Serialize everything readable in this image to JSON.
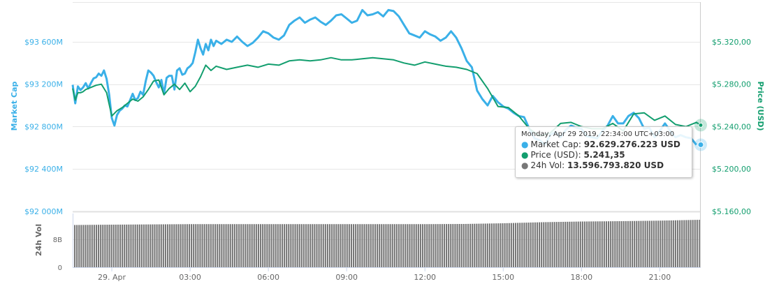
{
  "chart_data": {
    "type": "line",
    "title": "",
    "panes": [
      {
        "name": "main",
        "left_axis": {
          "label": "Market Cap",
          "ticks": [
            "$92 000M",
            "$92 400M",
            "$92 800M",
            "$93 200M",
            "$93 600M"
          ],
          "tick_values": [
            92000,
            92400,
            92800,
            93200,
            93600
          ],
          "range": [
            92000,
            93975
          ],
          "unit": "million USD",
          "color": "#3ab0e8"
        },
        "right_axis": {
          "label": "Price (USD)",
          "ticks": [
            "$5.160,00",
            "$5.200,00",
            "$5.240,00",
            "$5.280,00",
            "$5.320,00"
          ],
          "tick_values": [
            5160,
            5200,
            5240,
            5280,
            5320
          ],
          "range": [
            5160,
            5357.5
          ],
          "color": "#129e6e"
        }
      },
      {
        "name": "volume",
        "left_axis": {
          "label": "24h Vol",
          "ticks": [
            "0",
            "8B"
          ],
          "tick_values": [
            0,
            8
          ],
          "range": [
            0,
            16
          ],
          "unit": "billion USD",
          "color": "#666666"
        }
      }
    ],
    "xaxis": {
      "ticks": [
        "29. Apr",
        "03:00",
        "06:00",
        "09:00",
        "12:00",
        "15:00",
        "18:00",
        "21:00"
      ],
      "range_hours": [
        -1.5,
        22.57
      ]
    },
    "series": [
      {
        "name": "Market Cap",
        "axis": "left",
        "color": "#3ab0e8",
        "x_hours": [
          -1.5,
          -1.4,
          -1.3,
          -1.2,
          -1.1,
          -1.0,
          -0.9,
          -0.8,
          -0.7,
          -0.6,
          -0.5,
          -0.4,
          -0.3,
          -0.2,
          -0.1,
          0.0,
          0.1,
          0.2,
          0.3,
          0.4,
          0.5,
          0.6,
          0.7,
          0.8,
          0.9,
          1.0,
          1.1,
          1.2,
          1.3,
          1.4,
          1.5,
          1.6,
          1.7,
          1.8,
          1.9,
          2.0,
          2.1,
          2.2,
          2.3,
          2.4,
          2.5,
          2.6,
          2.7,
          2.8,
          2.9,
          3.0,
          3.1,
          3.2,
          3.3,
          3.4,
          3.5,
          3.6,
          3.7,
          3.8,
          3.9,
          4.0,
          4.2,
          4.4,
          4.6,
          4.8,
          5.0,
          5.2,
          5.4,
          5.6,
          5.8,
          6.0,
          6.2,
          6.4,
          6.6,
          6.8,
          7.0,
          7.2,
          7.4,
          7.6,
          7.8,
          8.0,
          8.2,
          8.4,
          8.6,
          8.8,
          9.0,
          9.2,
          9.4,
          9.6,
          9.8,
          10.0,
          10.2,
          10.4,
          10.6,
          10.8,
          11.0,
          11.2,
          11.4,
          11.6,
          11.8,
          12.0,
          12.2,
          12.4,
          12.6,
          12.8,
          13.0,
          13.2,
          13.4,
          13.6,
          13.8,
          14.0,
          14.2,
          14.4,
          14.6,
          14.8,
          15.0,
          15.2,
          15.4,
          15.6,
          15.8,
          16.0,
          16.2,
          16.4,
          16.6,
          16.8,
          17.0,
          17.2,
          17.4,
          17.6,
          17.8,
          18.0,
          18.2,
          18.4,
          18.6,
          18.8,
          19.0,
          19.2,
          19.4,
          19.6,
          19.8,
          20.0,
          20.2,
          20.4,
          20.6,
          20.8,
          21.0,
          21.2,
          21.4,
          21.6,
          21.8,
          22.0,
          22.2,
          22.4,
          22.57
        ],
        "values": [
          93195,
          93020,
          93180,
          93145,
          93170,
          93210,
          93160,
          93210,
          93255,
          93265,
          93300,
          93280,
          93330,
          93250,
          93100,
          92880,
          92810,
          92910,
          92950,
          92970,
          93000,
          92990,
          93050,
          93110,
          93050,
          93070,
          93130,
          93100,
          93230,
          93330,
          93310,
          93280,
          93220,
          93170,
          93240,
          93110,
          93260,
          93280,
          93280,
          93150,
          93330,
          93350,
          93290,
          93300,
          93350,
          93370,
          93400,
          93500,
          93620,
          93540,
          93480,
          93580,
          93520,
          93620,
          93560,
          93610,
          93580,
          93620,
          93600,
          93650,
          93600,
          93560,
          93590,
          93640,
          93700,
          93680,
          93640,
          93620,
          93660,
          93760,
          93800,
          93830,
          93780,
          93810,
          93830,
          93790,
          93760,
          93800,
          93850,
          93860,
          93820,
          93780,
          93800,
          93900,
          93850,
          93860,
          93880,
          93840,
          93900,
          93890,
          93840,
          93760,
          93680,
          93660,
          93640,
          93700,
          93670,
          93650,
          93610,
          93640,
          93700,
          93640,
          93540,
          93420,
          93360,
          93140,
          93060,
          93000,
          93090,
          93030,
          92990,
          92970,
          92930,
          92900,
          92890,
          92780,
          92690,
          92670,
          92630,
          92720,
          92750,
          92700,
          92770,
          92810,
          92790,
          92780,
          92710,
          92700,
          92690,
          92760,
          92810,
          92900,
          92830,
          92830,
          92900,
          92930,
          92880,
          92780,
          92790,
          92700,
          92760,
          92830,
          92760,
          92700,
          92720,
          92700,
          92690,
          92629
        ]
      },
      {
        "name": "Price (USD)",
        "axis": "right",
        "color": "#129e6e",
        "x_hours": [
          -1.5,
          -1.4,
          -1.3,
          -1.2,
          -1.1,
          -1.0,
          -0.8,
          -0.6,
          -0.4,
          -0.2,
          0.0,
          0.2,
          0.4,
          0.6,
          0.8,
          1.0,
          1.2,
          1.4,
          1.6,
          1.8,
          2.0,
          2.2,
          2.4,
          2.6,
          2.8,
          3.0,
          3.2,
          3.4,
          3.6,
          3.8,
          4.0,
          4.4,
          4.8,
          5.2,
          5.6,
          6.0,
          6.4,
          6.8,
          7.2,
          7.6,
          8.0,
          8.4,
          8.8,
          9.2,
          9.6,
          10.0,
          10.4,
          10.8,
          11.2,
          11.6,
          12.0,
          12.4,
          12.8,
          13.2,
          13.6,
          14.0,
          14.4,
          14.8,
          15.2,
          15.6,
          16.0,
          16.4,
          16.8,
          17.2,
          17.6,
          18.0,
          18.4,
          18.8,
          19.2,
          19.6,
          20.0,
          20.4,
          20.8,
          21.2,
          21.6,
          22.0,
          22.4,
          22.57
        ],
        "values": [
          5276,
          5265,
          5272,
          5272,
          5273,
          5275,
          5277,
          5279,
          5280,
          5272,
          5250,
          5255,
          5258,
          5262,
          5266,
          5264,
          5268,
          5275,
          5283,
          5284,
          5270,
          5276,
          5280,
          5275,
          5281,
          5273,
          5278,
          5287,
          5298,
          5293,
          5297,
          5294,
          5296,
          5298,
          5296,
          5299,
          5298,
          5302,
          5303,
          5302,
          5303,
          5305,
          5303,
          5303,
          5304,
          5305,
          5304,
          5303,
          5300,
          5298,
          5301,
          5299,
          5297,
          5296,
          5294,
          5290,
          5276,
          5259,
          5258,
          5250,
          5238,
          5231,
          5234,
          5243,
          5244,
          5240,
          5238,
          5238,
          5243,
          5236,
          5252,
          5253,
          5246,
          5250,
          5242,
          5240,
          5244,
          5241.35
        ]
      },
      {
        "name": "24h Vol",
        "axis": "volume",
        "color": "#777777",
        "type": "bar",
        "x_range_hours": [
          -1.5,
          22.57
        ],
        "bar_count": 290,
        "values_billion_keypoints": {
          "x_hours": [
            -1.5,
            0.0,
            3.0,
            6.0,
            9.0,
            12.0,
            13.5,
            15.0,
            16.5,
            18.0,
            19.5,
            21.0,
            22.57
          ],
          "values": [
            12.1,
            12.2,
            12.35,
            12.35,
            12.35,
            12.35,
            12.4,
            12.6,
            12.9,
            13.1,
            13.2,
            13.35,
            13.6
          ]
        }
      }
    ],
    "annotations": [
      {
        "type": "tooltip",
        "x_hours": 22.57,
        "date": "Monday, Apr 29 2019, 22:34:00 UTC+03:00",
        "rows": [
          {
            "label": "Market Cap",
            "value": "92.629.276.223 USD",
            "color": "#3ab0e8"
          },
          {
            "label": "Price (USD)",
            "value": "5.241,35",
            "color": "#129e6e"
          },
          {
            "label": "24h Vol",
            "value": "13.596.793.820 USD",
            "color": "#777777"
          }
        ]
      }
    ]
  },
  "tooltip": {
    "date": "Monday, Apr 29 2019, 22:34:00 UTC+03:00",
    "market_cap_label": "Market Cap: ",
    "market_cap_value": "92.629.276.223 USD",
    "price_label": "Price (USD): ",
    "price_value": "5.241,35",
    "volume_label": "24h Vol: ",
    "volume_value": "13.596.793.820 USD"
  },
  "colors": {
    "market_cap": "#3ab0e8",
    "price": "#129e6e",
    "volume": "#777777",
    "grid": "#e6e6e6",
    "axis_text": "#666666"
  }
}
